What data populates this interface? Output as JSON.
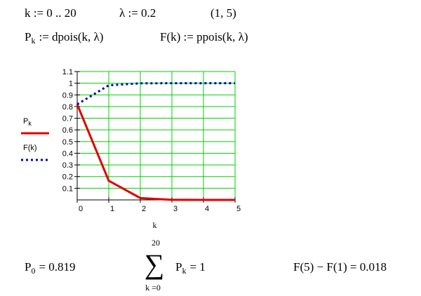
{
  "header": {
    "range": "k := 0 .. 20",
    "lambda": "λ := 0.2",
    "interval": "(1, 5)",
    "p_def": {
      "symbol": "P",
      "subscript": "k",
      "rest": ":= dpois(k, λ)"
    },
    "f_def": "F(k) := ppois(k, λ)"
  },
  "chart_data": {
    "type": "line",
    "x_label": "k",
    "x": [
      0,
      1,
      2,
      3,
      4,
      5
    ],
    "series": [
      {
        "name": "P",
        "subscript": "k",
        "color": "#e00000",
        "style": "solid",
        "values": [
          0.819,
          0.164,
          0.016,
          0.001,
          0.0001,
          0
        ]
      },
      {
        "name": "F(k)",
        "color": "#0000c0",
        "style": "dotted",
        "values": [
          0.819,
          0.982,
          0.999,
          1,
          1,
          1
        ]
      }
    ],
    "xlim": [
      0,
      5
    ],
    "xticks": [
      0,
      1,
      2,
      3,
      4,
      5
    ],
    "ylim": [
      0,
      1.1
    ],
    "yticks": [
      0.1,
      0.2,
      0.3,
      0.4,
      0.5,
      0.6,
      0.7,
      0.8,
      0.9,
      1,
      1.1
    ],
    "grid": true,
    "grid_color": "#00d000",
    "legend": "left"
  },
  "results": {
    "p0": {
      "symbol": "P",
      "subscript": "0",
      "rest": "= 0.819"
    },
    "sum": {
      "upper": "20",
      "sigma": "∑",
      "lower": "k =0",
      "symbol": "P",
      "subscript": "k",
      "rest": "= 1"
    },
    "diff": "F(5) − F(1) = 0.018"
  }
}
